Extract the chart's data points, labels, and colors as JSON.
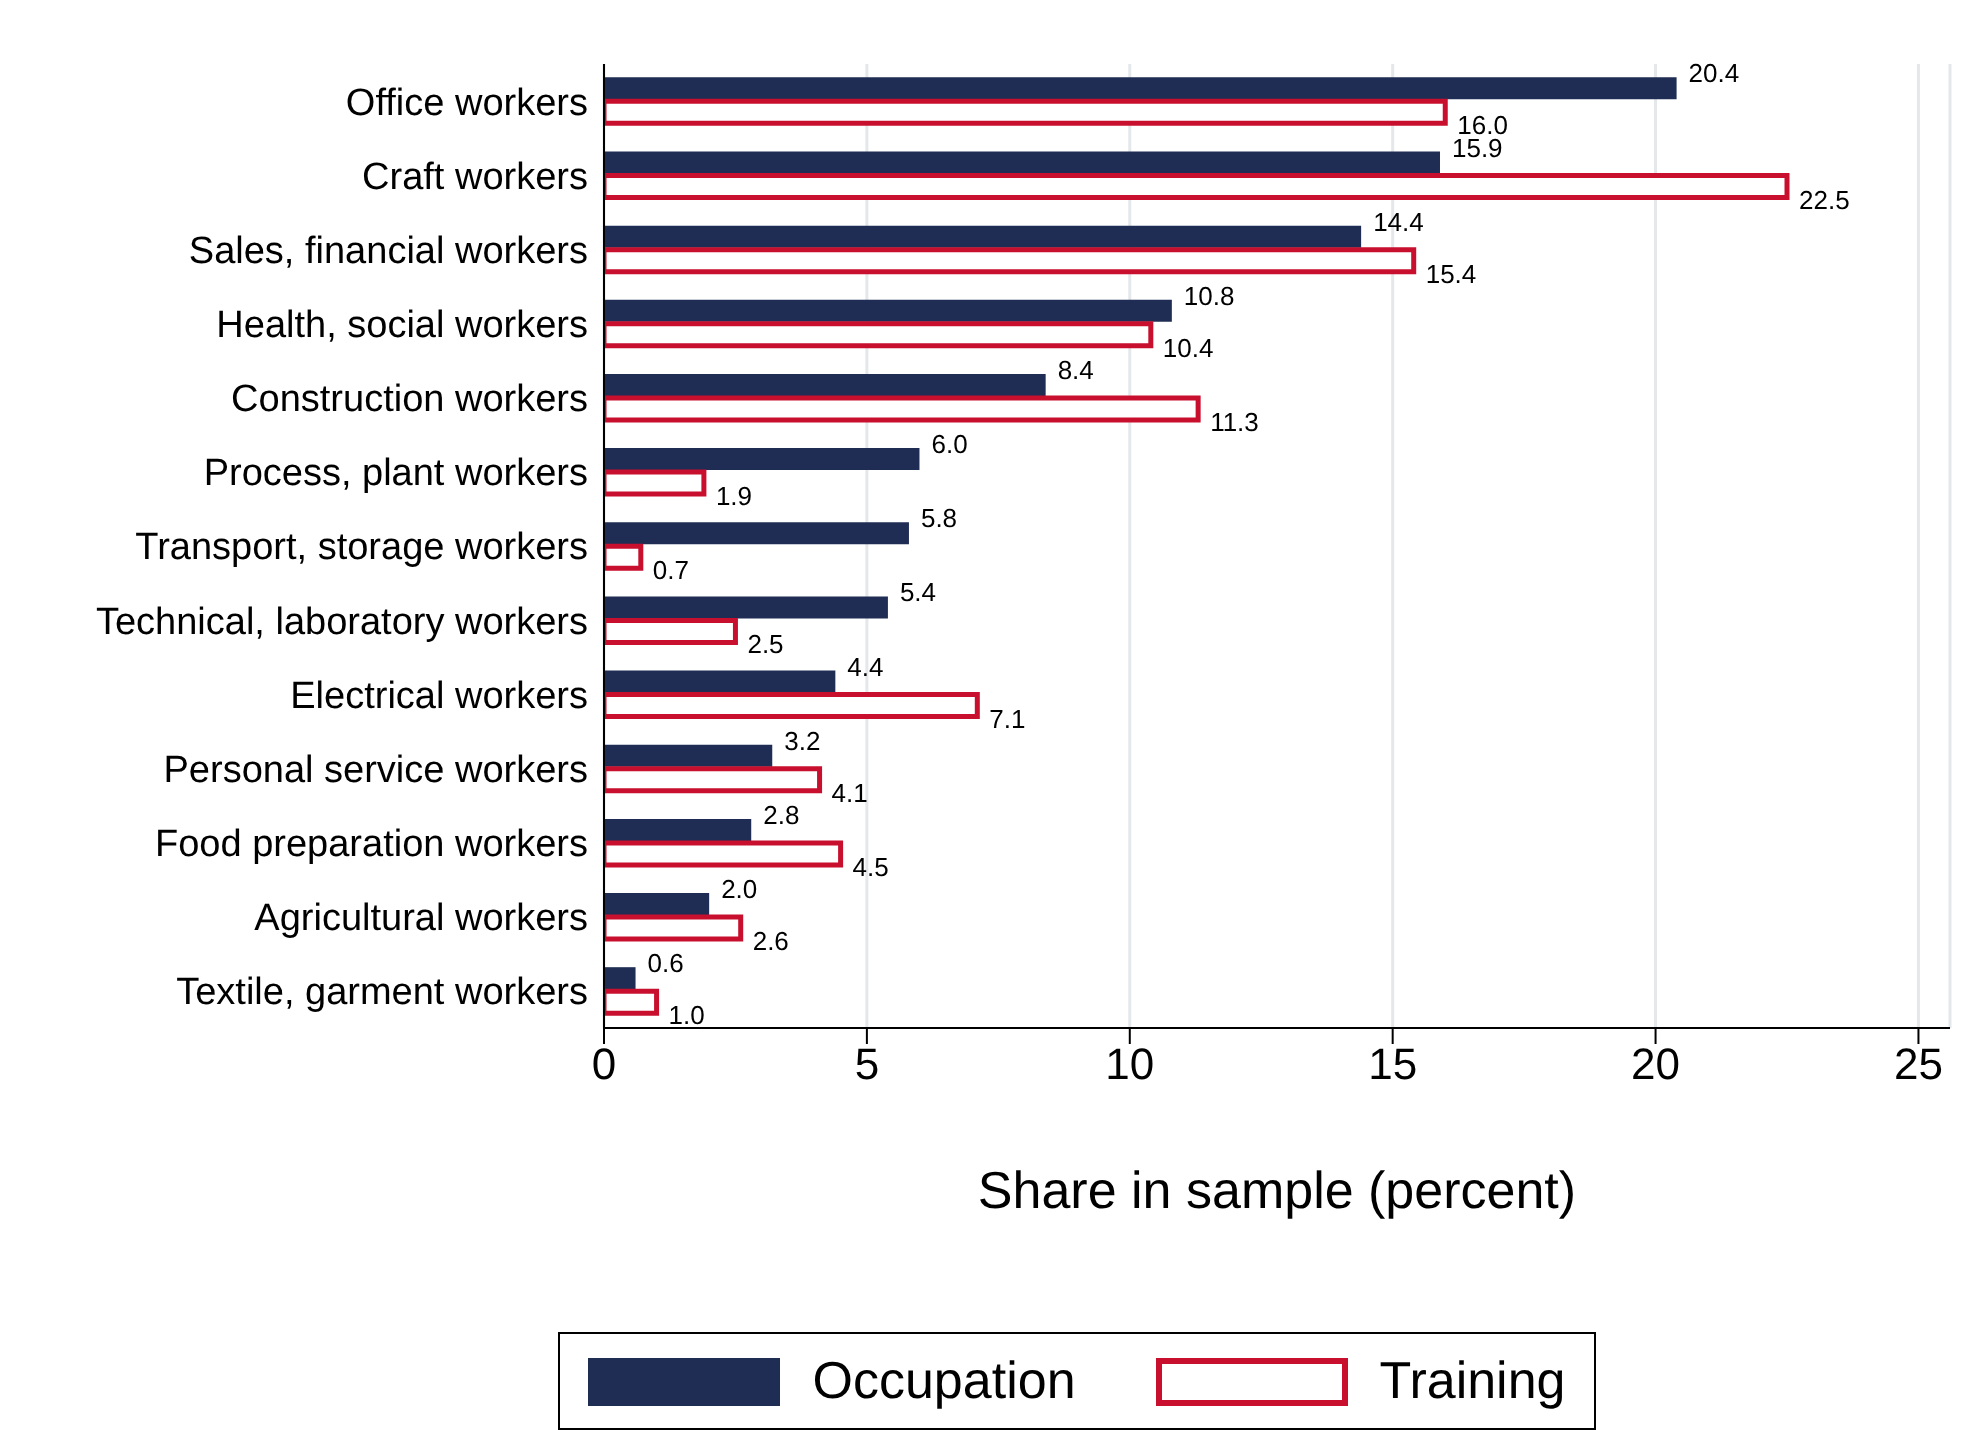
{
  "chart_data": {
    "type": "bar",
    "orientation": "horizontal",
    "xlabel": "Share in sample (percent)",
    "categories": [
      "Office workers",
      "Craft workers",
      "Sales, financial workers",
      "Health, social workers",
      "Construction workers",
      "Process, plant workers",
      "Transport, storage workers",
      "Technical, laboratory workers",
      "Electrical workers",
      "Personal service workers",
      "Food preparation workers",
      "Agricultural workers",
      "Textile, garment workers"
    ],
    "series": [
      {
        "name": "Occupation",
        "color": "#1f2c53",
        "values": [
          20.4,
          15.9,
          14.4,
          10.8,
          8.4,
          6.0,
          5.8,
          5.4,
          4.4,
          3.2,
          2.8,
          2.0,
          0.6
        ],
        "value_labels": [
          "20.4",
          "15.9",
          "14.4",
          "10.8",
          "8.4",
          "6.0",
          "5.8",
          "5.4",
          "4.4",
          "3.2",
          "2.8",
          "2.0",
          "0.6"
        ]
      },
      {
        "name": "Training",
        "color": "#c8102e",
        "values": [
          16.0,
          22.5,
          15.4,
          10.4,
          11.3,
          1.9,
          0.7,
          2.5,
          7.1,
          4.1,
          4.5,
          2.6,
          1.0
        ],
        "value_labels": [
          "16.0",
          "22.5",
          "15.4",
          "10.4",
          "11.3",
          "1.9",
          "0.7",
          "2.5",
          "7.1",
          "4.1",
          "4.5",
          "2.6",
          "1.0"
        ]
      }
    ],
    "xlim": [
      0,
      25.6
    ],
    "xticks": [
      0,
      5,
      10,
      15,
      20,
      25
    ],
    "grid": "x",
    "legend": "bottom"
  }
}
